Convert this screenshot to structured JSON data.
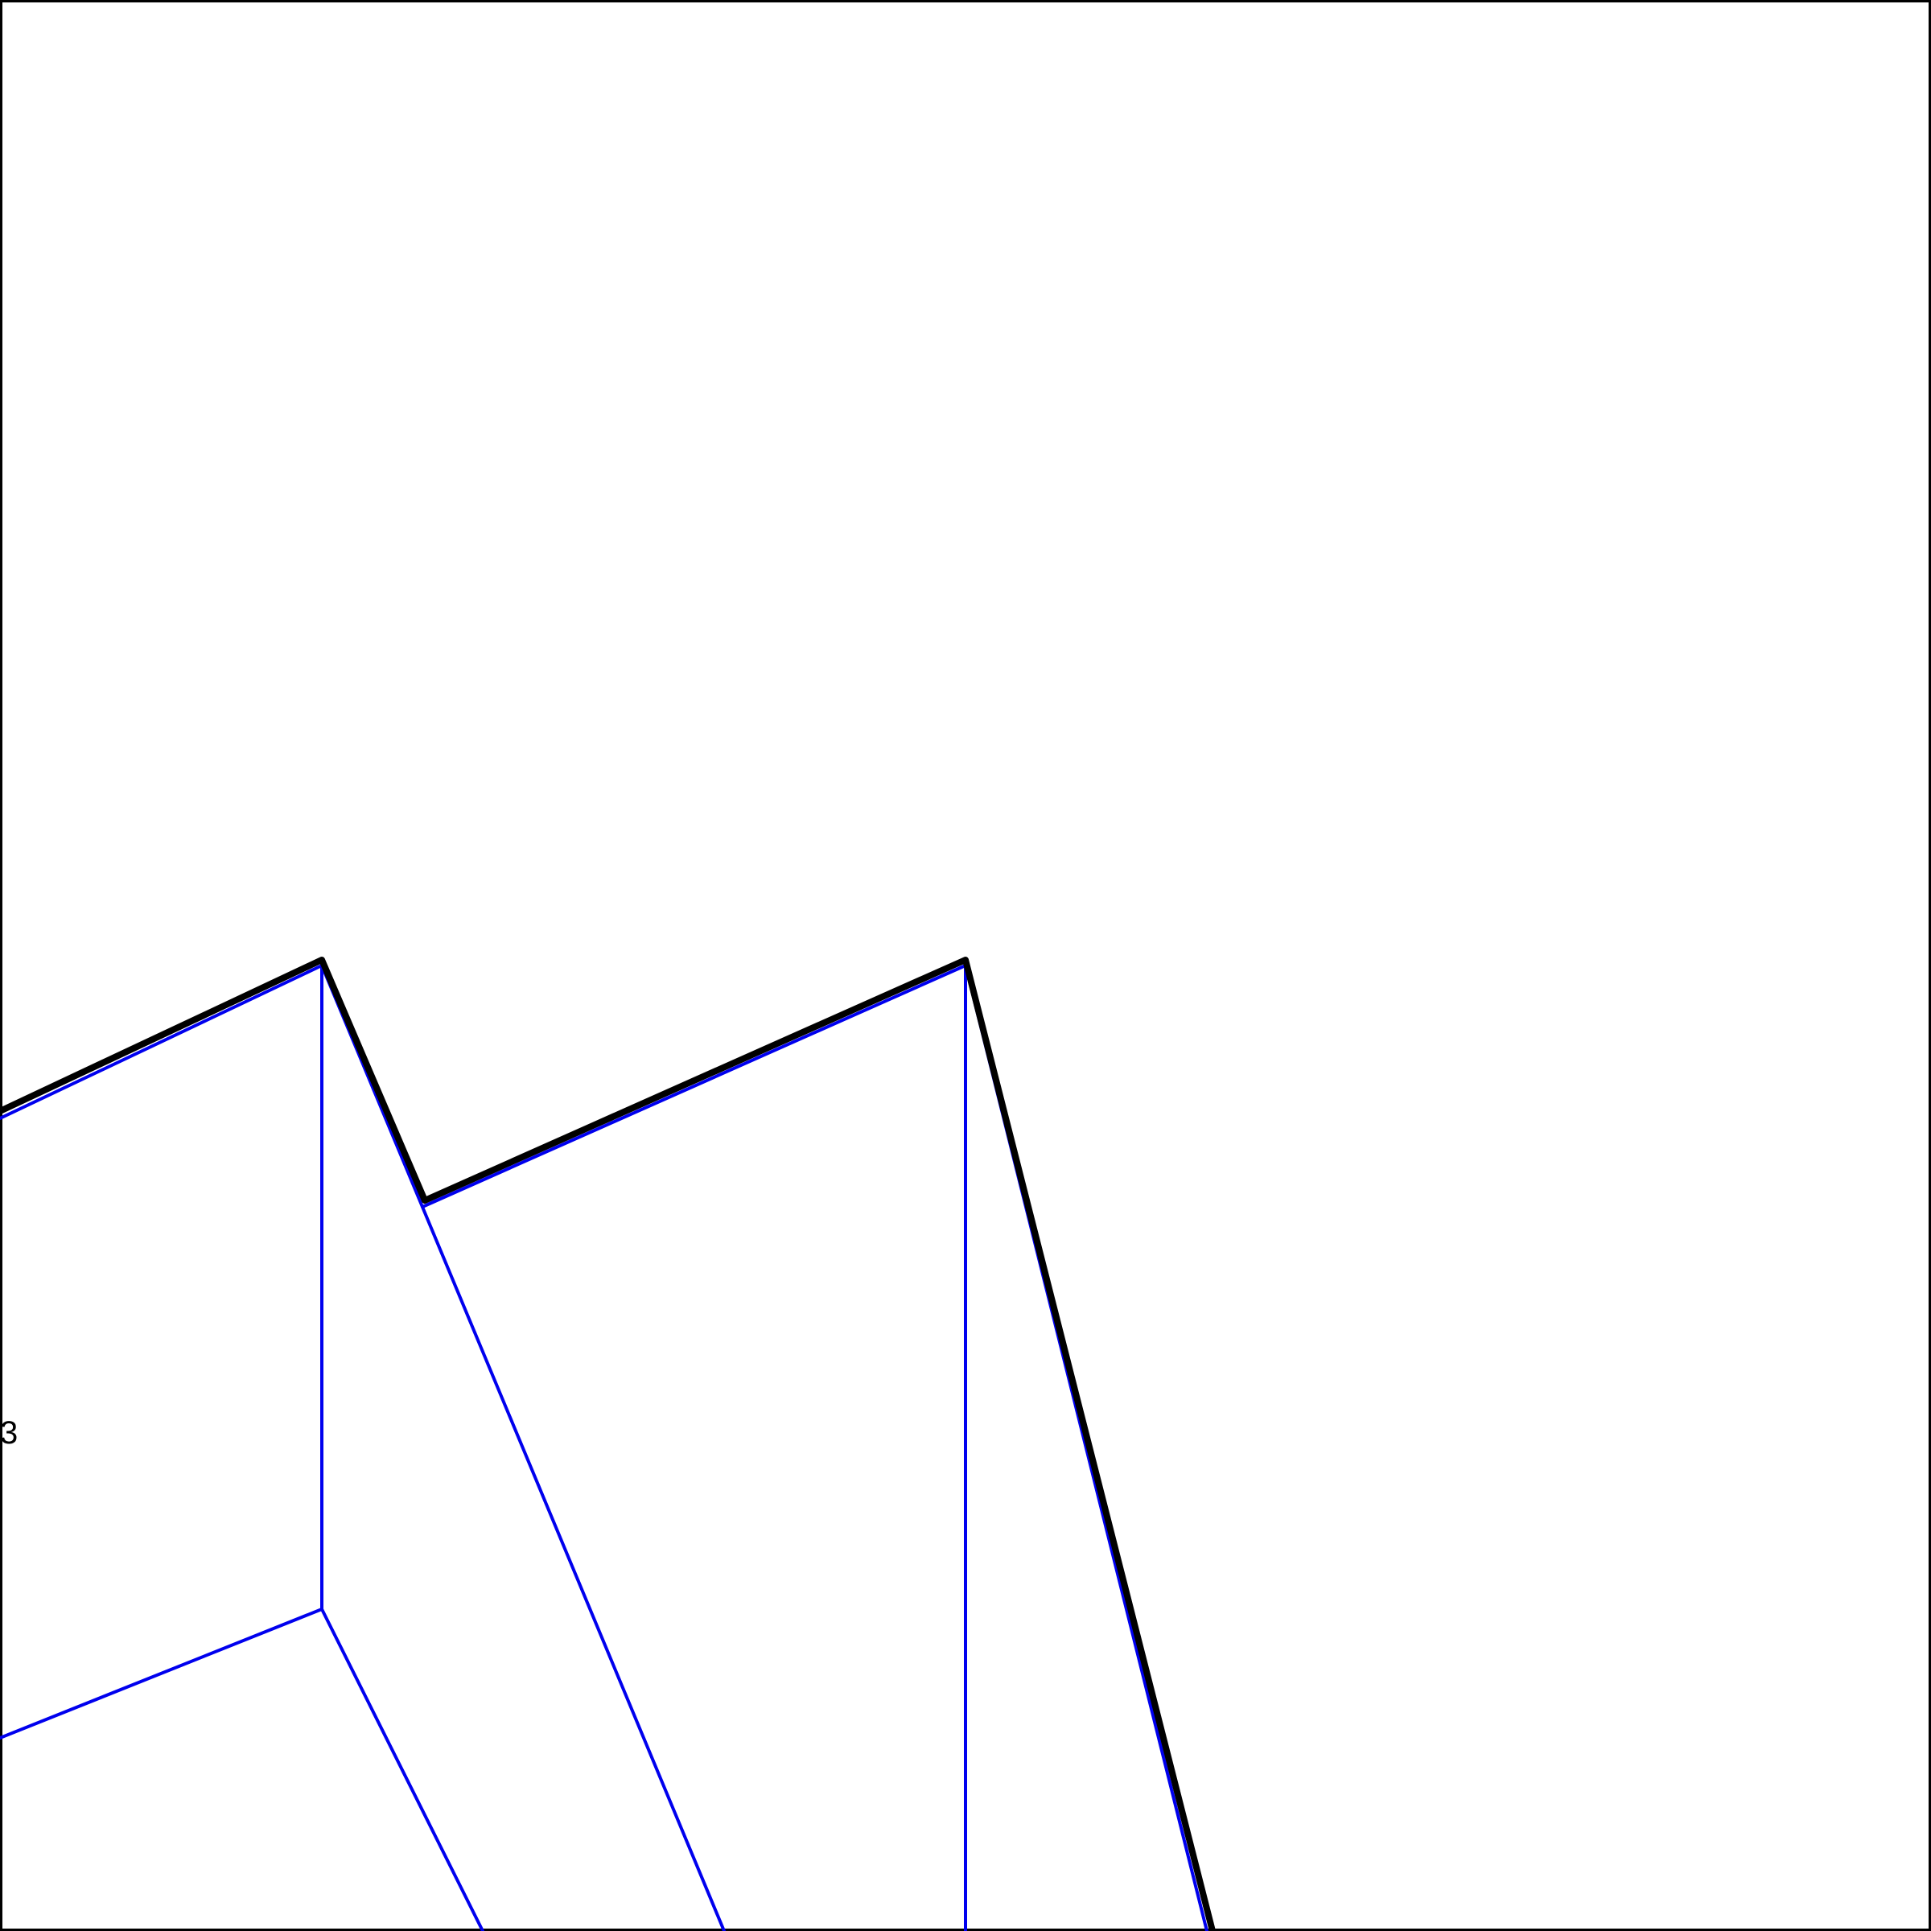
{
  "diagram": {
    "background": "#ffffff",
    "frame_color": "#000000",
    "outline_color": "#000000",
    "crease_color": "#0000ee",
    "labels": [
      {
        "id": "label-3",
        "text": "3"
      }
    ]
  }
}
